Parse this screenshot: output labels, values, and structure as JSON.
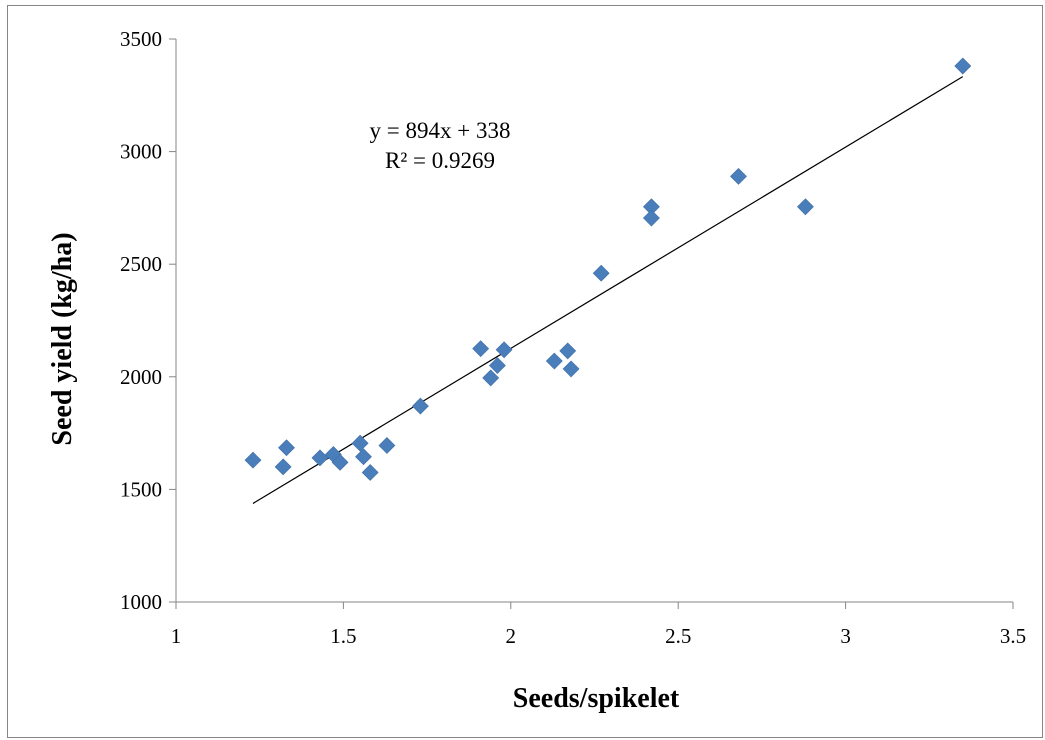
{
  "chart_data": {
    "type": "scatter",
    "xlabel": "Seeds/spikelet",
    "ylabel": "Seed yield (kg/ha)",
    "xlim": [
      1,
      3.5
    ],
    "ylim": [
      1000,
      3500
    ],
    "x_ticks": [
      "1",
      "1.5",
      "2",
      "2.5",
      "3",
      "3.5"
    ],
    "y_ticks": [
      "1000",
      "1500",
      "2000",
      "2500",
      "3000",
      "3500"
    ],
    "grid": false,
    "marker": "diamond",
    "marker_color": "#4a7ebb",
    "trendline": {
      "type": "linear",
      "slope": 894,
      "intercept": 338,
      "x_range": [
        1.23,
        3.35
      ],
      "color": "#000000"
    },
    "annotations": {
      "equation": "y = 894x + 338",
      "r2": "R² = 0.9269"
    },
    "points": [
      {
        "x": 1.23,
        "y": 1630
      },
      {
        "x": 1.32,
        "y": 1600
      },
      {
        "x": 1.33,
        "y": 1685
      },
      {
        "x": 1.43,
        "y": 1640
      },
      {
        "x": 1.47,
        "y": 1655
      },
      {
        "x": 1.49,
        "y": 1620
      },
      {
        "x": 1.55,
        "y": 1705
      },
      {
        "x": 1.56,
        "y": 1645
      },
      {
        "x": 1.58,
        "y": 1575
      },
      {
        "x": 1.63,
        "y": 1695
      },
      {
        "x": 1.73,
        "y": 1870
      },
      {
        "x": 1.91,
        "y": 2125
      },
      {
        "x": 1.94,
        "y": 1995
      },
      {
        "x": 1.96,
        "y": 2050
      },
      {
        "x": 1.98,
        "y": 2120
      },
      {
        "x": 2.13,
        "y": 2070
      },
      {
        "x": 2.17,
        "y": 2115
      },
      {
        "x": 2.18,
        "y": 2035
      },
      {
        "x": 2.27,
        "y": 2460
      },
      {
        "x": 2.42,
        "y": 2755
      },
      {
        "x": 2.42,
        "y": 2705
      },
      {
        "x": 2.68,
        "y": 2890
      },
      {
        "x": 2.88,
        "y": 2755
      },
      {
        "x": 3.35,
        "y": 3380
      }
    ]
  }
}
